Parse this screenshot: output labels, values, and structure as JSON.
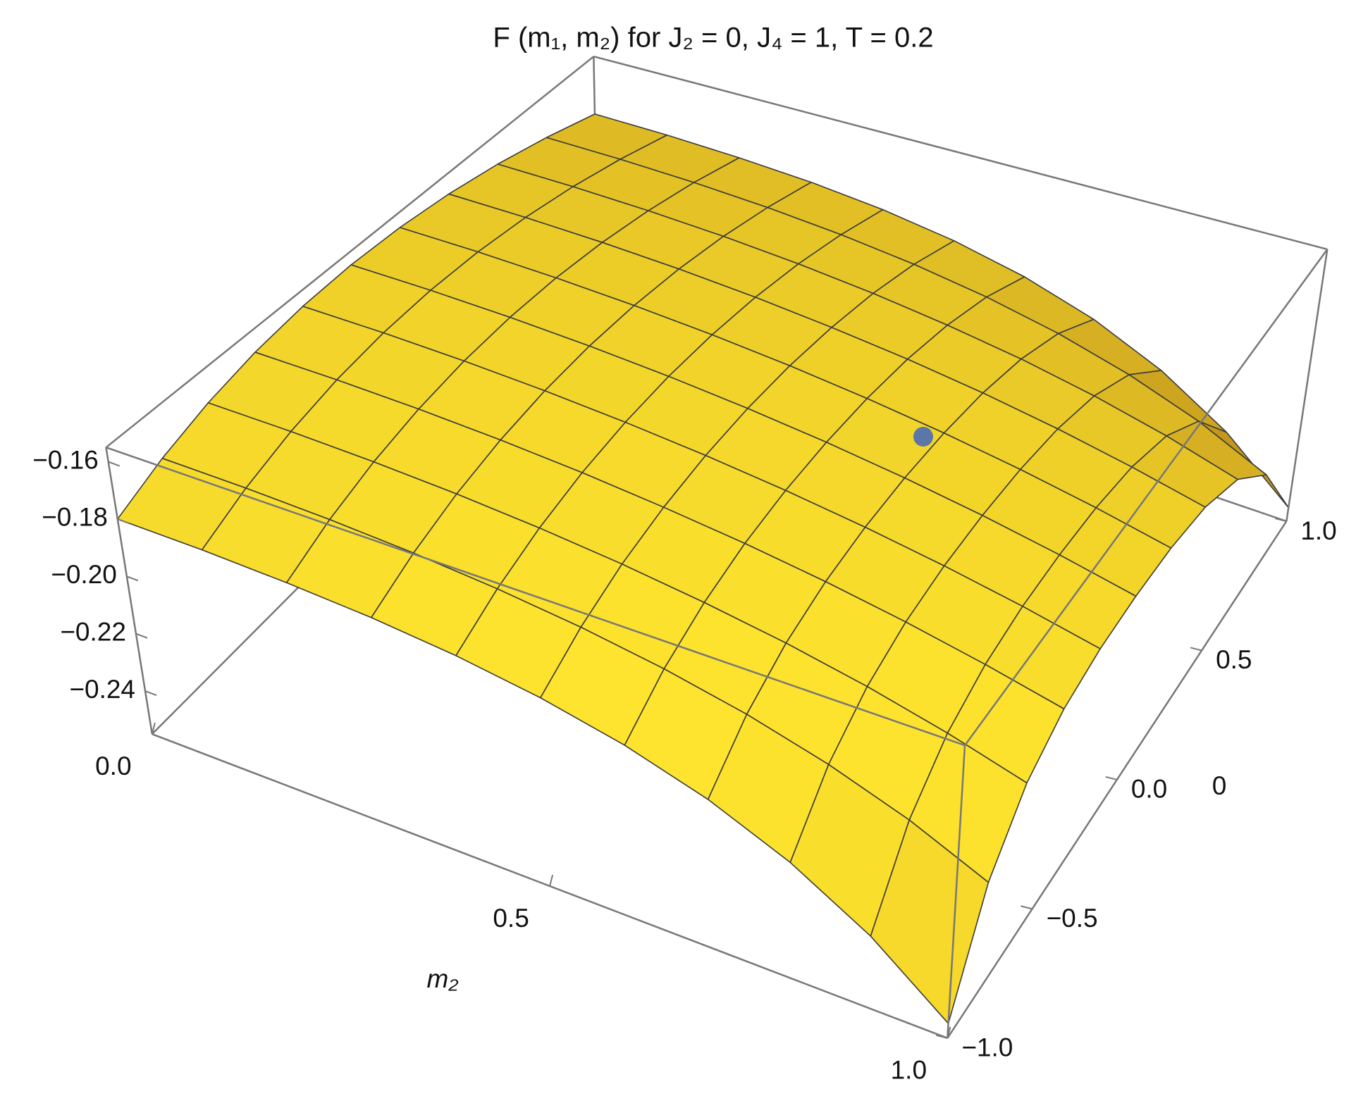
{
  "chart_data": {
    "type": "surface3d",
    "title": "F (m₁, m₂) for J₂ = 0, J₄ = 1, T = 0.2",
    "xlabel": "m₂",
    "annotation": "0",
    "x": [
      0,
      0.1,
      0.2,
      0.3,
      0.4,
      0.5,
      0.6,
      0.7,
      0.8,
      0.9,
      1
    ],
    "y": [
      -1,
      -0.8,
      -0.6,
      -0.4,
      -0.2,
      0,
      0.2,
      0.4,
      0.6,
      0.8,
      1
    ],
    "z": [
      [
        -0.18,
        -0.1728,
        -0.1672,
        -0.1632,
        -0.1608,
        -0.16,
        -0.1608,
        -0.1632,
        -0.1672,
        -0.1728,
        -0.18
      ],
      [
        -0.1803,
        -0.1731,
        -0.1675,
        -0.1635,
        -0.1611,
        -0.1603,
        -0.1611,
        -0.1635,
        -0.1675,
        -0.1731,
        -0.1803
      ],
      [
        -0.1813,
        -0.174,
        -0.1684,
        -0.1644,
        -0.162,
        -0.1612,
        -0.162,
        -0.1644,
        -0.1684,
        -0.174,
        -0.1813
      ],
      [
        -0.183,
        -0.1756,
        -0.1699,
        -0.1659,
        -0.1635,
        -0.1627,
        -0.1635,
        -0.1659,
        -0.1699,
        -0.1756,
        -0.183
      ],
      [
        -0.1858,
        -0.178,
        -0.1721,
        -0.168,
        -0.1656,
        -0.1648,
        -0.1656,
        -0.168,
        -0.1721,
        -0.178,
        -0.1858
      ],
      [
        -0.19,
        -0.1813,
        -0.175,
        -0.1708,
        -0.1683,
        -0.1675,
        -0.1683,
        -0.1708,
        -0.175,
        -0.1813,
        -0.19
      ],
      [
        -0.196,
        -0.1857,
        -0.1787,
        -0.1741,
        -0.1716,
        -0.1708,
        -0.1716,
        -0.1741,
        -0.1787,
        -0.1857,
        -0.196
      ],
      [
        -0.2043,
        -0.1914,
        -0.1831,
        -0.1781,
        -0.1755,
        -0.1747,
        -0.1755,
        -0.1781,
        -0.1831,
        -0.1914,
        -0.2043
      ],
      [
        -0.2156,
        -0.1987,
        -0.1885,
        -0.1828,
        -0.18,
        -0.1792,
        -0.18,
        -0.1828,
        -0.1885,
        -0.1987,
        -0.2156
      ],
      [
        -0.2305,
        -0.2078,
        -0.1949,
        -0.1882,
        -0.1851,
        -0.1843,
        -0.1851,
        -0.1882,
        -0.1949,
        -0.2078,
        -0.2305
      ],
      [
        -0.25,
        -0.2192,
        -0.2024,
        -0.1942,
        -0.1908,
        -0.19,
        -0.1908,
        -0.1942,
        -0.2024,
        -0.2192,
        -0.25
      ]
    ],
    "point": {
      "x": 0.65,
      "y": 0.3,
      "z": -0.19,
      "color": "#5b77a8"
    },
    "xlim": [
      0,
      1
    ],
    "ylim": [
      -1,
      1
    ],
    "zlim": [
      -0.255,
      -0.155
    ],
    "xticks": [
      {
        "value": 0,
        "label": "0.0"
      },
      0.5,
      {
        "value": 1,
        "label": "1.0"
      }
    ],
    "yticks": [
      {
        "value": -1,
        "label": "−1.0"
      },
      {
        "value": -0.5,
        "label": "−0.5"
      },
      {
        "value": 0,
        "label": "0.0"
      },
      0.5,
      {
        "value": 1,
        "label": "1.0"
      }
    ],
    "zticks": [
      {
        "value": -0.16,
        "label": "−0.16"
      },
      {
        "value": -0.18,
        "label": "−0.18"
      },
      {
        "value": -0.2,
        "label": "−0.20"
      },
      {
        "value": -0.22,
        "label": "−0.22"
      },
      {
        "value": -0.24,
        "label": "−0.24"
      }
    ],
    "colors": {
      "light": "#ffe52e",
      "dark": "#7a3a06",
      "mesh": "#3a3a3a"
    }
  }
}
